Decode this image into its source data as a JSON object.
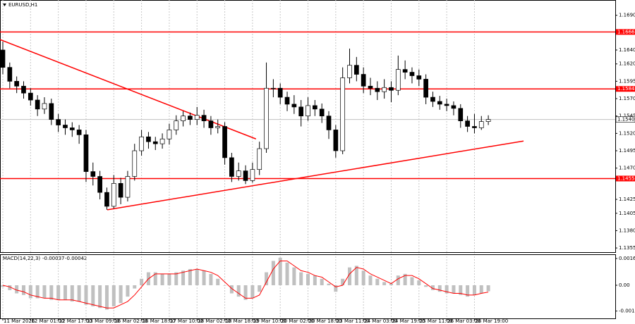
{
  "chart_data": [
    {
      "type": "candlestick",
      "title": "EURUSD,H1",
      "categories": [
        "11 Mar 2026",
        null,
        null,
        null,
        "12 Mar 01:00",
        null,
        null,
        null,
        "12 Mar 17:00",
        null,
        null,
        null,
        "13 Mar 09:00",
        null,
        null,
        null,
        "16 Mar 02:00",
        null,
        null,
        null,
        "16 Mar 18:00",
        null,
        null,
        null,
        "17 Mar 10:00",
        null,
        null,
        null,
        "18 Mar 02:00",
        null,
        null,
        null,
        "18 Mar 18:00",
        null,
        null,
        null,
        "19 Mar 10:00",
        null,
        null,
        null,
        "20 Mar 02:00",
        null,
        null,
        null,
        "20 Mar 18:00",
        null,
        null,
        null,
        "23 Mar 11:00",
        null,
        null,
        null,
        "24 Mar 03:00",
        null,
        null,
        null,
        "24 Mar 19:00",
        null,
        null,
        null,
        "25 Mar 11:00",
        null,
        null,
        null,
        "26 Mar 03:00",
        null,
        null,
        null,
        "26 Mar 19:00",
        null,
        null
      ],
      "open": [
        1.164,
        1.1615,
        1.1595,
        1.1588,
        1.1578,
        1.1568,
        1.1555,
        1.1563,
        1.154,
        1.1532,
        1.1528,
        1.1525,
        1.1518,
        1.1465,
        1.1458,
        1.1435,
        1.1415,
        1.1448,
        1.1428,
        1.1458,
        1.1495,
        1.1515,
        1.1508,
        1.1505,
        1.1512,
        1.1525,
        1.1538,
        1.1545,
        1.154,
        1.1546,
        1.1538,
        1.1528,
        1.153,
        1.1485,
        1.1458,
        1.1466,
        1.1452,
        1.1468,
        1.1498,
        1.1585,
        1.1585,
        1.1572,
        1.1562,
        1.1558,
        1.1545,
        1.156,
        1.1555,
        1.1545,
        1.1525,
        1.1495,
        1.16,
        1.1618,
        1.1605,
        1.1588,
        1.1585,
        1.158,
        1.1586,
        1.1582,
        1.1612,
        1.1608,
        1.1603,
        1.1598,
        1.1572,
        1.1566,
        1.1562,
        1.156,
        1.1556,
        1.1538,
        1.153,
        1.1528,
        1.1537
      ],
      "high": [
        1.1652,
        1.1622,
        1.1602,
        1.1595,
        1.1585,
        1.1575,
        1.1572,
        1.157,
        1.1548,
        1.154,
        1.1536,
        1.1532,
        1.1525,
        1.1478,
        1.1466,
        1.1442,
        1.146,
        1.1456,
        1.1466,
        1.1505,
        1.1525,
        1.1522,
        1.1515,
        1.152,
        1.1534,
        1.1546,
        1.1552,
        1.155,
        1.1558,
        1.1554,
        1.1545,
        1.154,
        1.1536,
        1.1492,
        1.1478,
        1.1474,
        1.1478,
        1.1508,
        1.1622,
        1.1598,
        1.1592,
        1.158,
        1.1575,
        1.1568,
        1.1572,
        1.1568,
        1.1563,
        1.1552,
        1.1532,
        1.1615,
        1.1642,
        1.163,
        1.1615,
        1.16,
        1.1595,
        1.1598,
        1.1595,
        1.1632,
        1.1625,
        1.1615,
        1.1612,
        1.1605,
        1.158,
        1.1574,
        1.157,
        1.1566,
        1.1562,
        1.1545,
        1.1548,
        1.1545,
        1.1546
      ],
      "low": [
        1.1605,
        1.1585,
        1.1578,
        1.157,
        1.156,
        1.1545,
        1.1548,
        1.1532,
        1.1522,
        1.1518,
        1.1515,
        1.1505,
        1.145,
        1.1445,
        1.1425,
        1.141,
        1.1412,
        1.1418,
        1.1422,
        1.1452,
        1.1488,
        1.1498,
        1.1496,
        1.1498,
        1.1504,
        1.1518,
        1.153,
        1.1532,
        1.1532,
        1.1528,
        1.1518,
        1.152,
        1.1475,
        1.145,
        1.1452,
        1.1447,
        1.1449,
        1.146,
        1.1492,
        1.1572,
        1.1562,
        1.1552,
        1.1548,
        1.153,
        1.1538,
        1.1545,
        1.1535,
        1.1512,
        1.1485,
        1.149,
        1.1592,
        1.1595,
        1.1578,
        1.1575,
        1.1568,
        1.157,
        1.1565,
        1.1575,
        1.1598,
        1.1592,
        1.1588,
        1.1562,
        1.1558,
        1.1554,
        1.1552,
        1.1546,
        1.1528,
        1.1522,
        1.152,
        1.1525,
        1.1532
      ],
      "close": [
        1.1615,
        1.1595,
        1.1588,
        1.1578,
        1.1568,
        1.1555,
        1.1563,
        1.154,
        1.1532,
        1.1528,
        1.1525,
        1.1518,
        1.1465,
        1.1458,
        1.1435,
        1.1415,
        1.1448,
        1.1428,
        1.1458,
        1.1495,
        1.1515,
        1.1508,
        1.1505,
        1.1512,
        1.1525,
        1.1538,
        1.1545,
        1.154,
        1.1546,
        1.1538,
        1.1528,
        1.153,
        1.1485,
        1.1458,
        1.1466,
        1.1452,
        1.1468,
        1.1498,
        1.1585,
        1.1585,
        1.1572,
        1.1562,
        1.1558,
        1.1545,
        1.156,
        1.1555,
        1.1545,
        1.1525,
        1.1495,
        1.16,
        1.1618,
        1.1605,
        1.1588,
        1.1585,
        1.158,
        1.1586,
        1.1582,
        1.1612,
        1.1608,
        1.1603,
        1.1598,
        1.1572,
        1.1566,
        1.1562,
        1.156,
        1.1556,
        1.1538,
        1.153,
        1.1528,
        1.1537,
        1.154
      ],
      "ylim": [
        1.1349,
        1.1712
      ],
      "yticks": [
        {
          "value": 1.169,
          "label": "1.1690"
        },
        {
          "value": 1.1665,
          "label": "1.1665"
        },
        {
          "value": 1.164,
          "label": "1.1640"
        },
        {
          "value": 1.162,
          "label": "1.1620"
        },
        {
          "value": 1.1595,
          "label": "1.1595"
        },
        {
          "value": 1.157,
          "label": "1.1570"
        },
        {
          "value": 1.1545,
          "label": "1.1545"
        },
        {
          "value": 1.152,
          "label": "1.1520"
        },
        {
          "value": 1.1495,
          "label": "1.1495"
        },
        {
          "value": 1.147,
          "label": "1.1470"
        },
        {
          "value": 1.1425,
          "label": "1.1425"
        },
        {
          "value": 1.1405,
          "label": "1.1405"
        },
        {
          "value": 1.138,
          "label": "1.1380"
        },
        {
          "value": 1.1355,
          "label": "1.1355"
        }
      ],
      "levels": [
        {
          "value": 1.1666,
          "color": "#ff0000"
        },
        {
          "value": 1.1584,
          "color": "#ff0000"
        },
        {
          "value": 1.1455,
          "color": "#ff0000"
        }
      ],
      "current_price": {
        "value": 1.154,
        "label": "1.1540"
      },
      "trendlines": [
        {
          "x": [
            -0.4,
            36.5
          ],
          "y": [
            1.1655,
            1.1512
          ],
          "color": "#ff0000"
        },
        {
          "x": [
            15.06,
            75.08
          ],
          "y": [
            1.141,
            1.1509
          ],
          "color": "#ff0000"
        }
      ]
    },
    {
      "type": "macd",
      "title": "MACD(14,22,3)",
      "series": [
        {
          "name": "MACD",
          "color": "#c0c0c0",
          "values": [
            -0.0001,
            -0.0003,
            -0.0005,
            -0.0006,
            -0.0008,
            -0.0008,
            -0.0008,
            -0.0009,
            -0.0009,
            -0.0009,
            -0.001,
            -0.001,
            -0.0012,
            -0.0013,
            -0.0014,
            -0.0015,
            -0.0013,
            -0.0011,
            -0.0007,
            -0.0002,
            0.0004,
            0.0008,
            0.0008,
            0.0007,
            0.0007,
            0.0008,
            0.0009,
            0.001,
            0.001,
            0.0009,
            0.0007,
            0.0004,
            0,
            -0.0005,
            -0.0007,
            -0.0009,
            -0.0008,
            -0.0004,
            0.0008,
            0.0015,
            0.0017,
            0.0014,
            0.0011,
            0.0008,
            0.0007,
            0.0006,
            0.0004,
            0.0001,
            -0.0004,
            0.0004,
            0.0011,
            0.0012,
            0.0009,
            0.0006,
            0.0004,
            0.0002,
            0.0001,
            0.0006,
            0.0007,
            0.0005,
            0.0003,
            -0.0001,
            -0.0003,
            -0.0004,
            -0.0005,
            -0.0005,
            -0.0006,
            -0.0007,
            -0.0006,
            -0.0005,
            -0.00037
          ]
        },
        {
          "name": "Signal",
          "color": "#ff0000",
          "values": [
            0,
            -0.0001,
            -0.0003,
            -0.0004,
            -0.0006,
            -0.0007,
            -0.0008,
            -0.0008,
            -0.0009,
            -0.0009,
            -0.0009,
            -0.001,
            -0.0011,
            -0.0012,
            -0.0013,
            -0.0014,
            -0.0014,
            -0.0012,
            -0.001,
            -0.0006,
            -0.0001,
            0.0004,
            0.0007,
            0.0007,
            0.0007,
            0.0007,
            0.0008,
            0.0009,
            0.001,
            0.0009,
            0.0008,
            0.0006,
            0.0002,
            -0.0002,
            -0.0005,
            -0.0008,
            -0.0008,
            -0.0006,
            0.0002,
            0.001,
            0.0015,
            0.0015,
            0.0012,
            0.0009,
            0.0008,
            0.0006,
            0.0005,
            0.0002,
            -0.0001,
            0,
            0.0007,
            0.0011,
            0.001,
            0.0007,
            0.0005,
            0.0003,
            0.0001,
            0.0004,
            0.0006,
            0.0006,
            0.0004,
            0.0001,
            -0.0002,
            -0.0003,
            -0.0004,
            -0.0005,
            -0.0005,
            -0.0006,
            -0.0006,
            -0.0005,
            -0.00042
          ]
        }
      ],
      "ylim": [
        -0.00204,
        0.00191
      ],
      "yticks": [
        0.00165,
        {
          "value": 0,
          "label": "0.00"
        },
        -0.00159
      ]
    }
  ]
}
